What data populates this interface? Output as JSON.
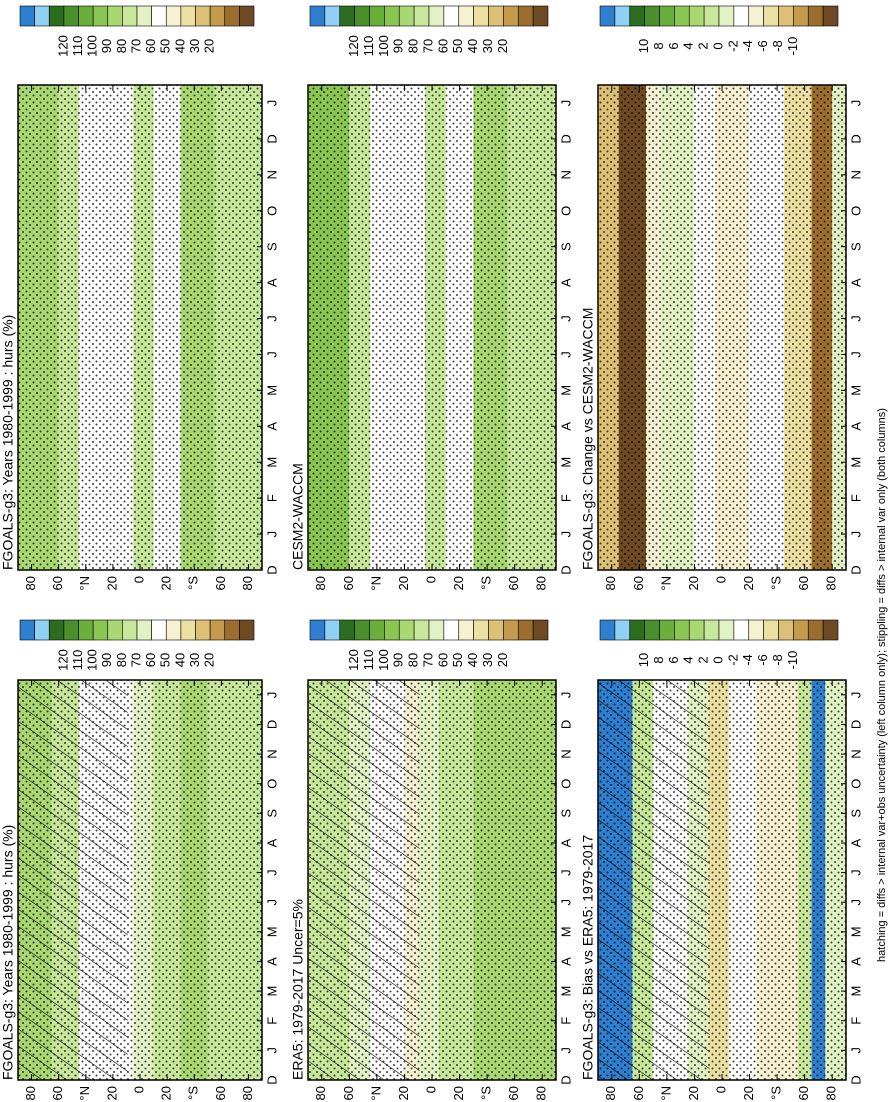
{
  "chart_data": [
    {
      "type": "contour",
      "title": "FGOALS-g3: Years 1980-1999 : hurs (%)",
      "categories": [
        "D",
        "J",
        "F",
        "M",
        "A",
        "M",
        "J",
        "J",
        "A",
        "S",
        "O",
        "N",
        "D",
        "J"
      ],
      "ylim": [
        90,
        -90
      ],
      "yticks": [
        80,
        60,
        {
          "value": 40,
          "label": "°N"
        },
        20,
        0,
        {
          "value": -20,
          "label": "20"
        },
        {
          "value": -40,
          "label": "°S"
        },
        {
          "value": -60,
          "label": "60"
        },
        {
          "value": -80,
          "label": "80"
        }
      ],
      "colorbar": {
        "ticks": [
          120,
          110,
          100,
          90,
          80,
          70,
          60,
          50,
          40,
          30,
          20
        ],
        "colors": [
          "#2f7fd0",
          "#8fd0f5",
          "#2c6e1f",
          "#4a8f2c",
          "#6aae3c",
          "#8bc653",
          "#a9d873",
          "#c7e89a",
          "#e2f2c4",
          "#ffffff",
          "#f6f1d0",
          "#ecdfa2",
          "#dcc076",
          "#c49a4c",
          "#9c6e2e",
          "#6e4a22"
        ]
      },
      "hatching": true
    },
    {
      "type": "contour",
      "title": "FGOALS-g3: Years 1980-1999 : hurs (%)",
      "categories": [
        "D",
        "J",
        "F",
        "M",
        "A",
        "M",
        "J",
        "J",
        "A",
        "S",
        "O",
        "N",
        "D",
        "J"
      ],
      "ylim": [
        90,
        -90
      ],
      "yticks": [
        80,
        60,
        {
          "value": 40,
          "label": "°N"
        },
        20,
        0,
        {
          "value": -20,
          "label": "20"
        },
        {
          "value": -40,
          "label": "°S"
        },
        {
          "value": -60,
          "label": "60"
        },
        {
          "value": -80,
          "label": "80"
        }
      ],
      "colorbar": {
        "ticks": [
          120,
          110,
          100,
          90,
          80,
          70,
          60,
          50,
          40,
          30,
          20
        ],
        "colors": [
          "#2f7fd0",
          "#8fd0f5",
          "#2c6e1f",
          "#4a8f2c",
          "#6aae3c",
          "#8bc653",
          "#a9d873",
          "#c7e89a",
          "#e2f2c4",
          "#ffffff",
          "#f6f1d0",
          "#ecdfa2",
          "#dcc076",
          "#c49a4c",
          "#9c6e2e",
          "#6e4a22"
        ]
      },
      "hatching": false
    },
    {
      "type": "contour",
      "title": "ERA5: 1979-2017 Uncer=5%",
      "categories": [
        "D",
        "J",
        "F",
        "M",
        "A",
        "M",
        "J",
        "J",
        "A",
        "S",
        "O",
        "N",
        "D",
        "J"
      ],
      "ylim": [
        90,
        -90
      ],
      "yticks": [
        80,
        60,
        {
          "value": 40,
          "label": "°N"
        },
        20,
        0,
        {
          "value": -20,
          "label": "20"
        },
        {
          "value": -40,
          "label": "°S"
        },
        {
          "value": -60,
          "label": "60"
        },
        {
          "value": -80,
          "label": "80"
        }
      ],
      "colorbar": {
        "ticks": [
          120,
          110,
          100,
          90,
          80,
          70,
          60,
          50,
          40,
          30,
          20
        ],
        "colors": [
          "#2f7fd0",
          "#8fd0f5",
          "#2c6e1f",
          "#4a8f2c",
          "#6aae3c",
          "#8bc653",
          "#a9d873",
          "#c7e89a",
          "#e2f2c4",
          "#ffffff",
          "#f6f1d0",
          "#ecdfa2",
          "#dcc076",
          "#c49a4c",
          "#9c6e2e",
          "#6e4a22"
        ]
      },
      "hatching": true
    },
    {
      "type": "contour",
      "title": "CESM2-WACCM",
      "categories": [
        "D",
        "J",
        "F",
        "M",
        "A",
        "M",
        "J",
        "J",
        "A",
        "S",
        "O",
        "N",
        "D",
        "J"
      ],
      "ylim": [
        90,
        -90
      ],
      "yticks": [
        80,
        60,
        {
          "value": 40,
          "label": "°N"
        },
        20,
        0,
        {
          "value": -20,
          "label": "20"
        },
        {
          "value": -40,
          "label": "°S"
        },
        {
          "value": -60,
          "label": "60"
        },
        {
          "value": -80,
          "label": "80"
        }
      ],
      "colorbar": {
        "ticks": [
          120,
          110,
          100,
          90,
          80,
          70,
          60,
          50,
          40,
          30,
          20
        ],
        "colors": [
          "#2f7fd0",
          "#8fd0f5",
          "#2c6e1f",
          "#4a8f2c",
          "#6aae3c",
          "#8bc653",
          "#a9d873",
          "#c7e89a",
          "#e2f2c4",
          "#ffffff",
          "#f6f1d0",
          "#ecdfa2",
          "#dcc076",
          "#c49a4c",
          "#9c6e2e",
          "#6e4a22"
        ]
      },
      "hatching": false
    },
    {
      "type": "contour",
      "title": "FGOALS-g3: Bias vs ERA5: 1979-2017",
      "categories": [
        "D",
        "J",
        "F",
        "M",
        "A",
        "M",
        "J",
        "J",
        "A",
        "S",
        "O",
        "N",
        "D",
        "J"
      ],
      "ylim": [
        90,
        -90
      ],
      "yticks": [
        80,
        60,
        {
          "value": 40,
          "label": "°N"
        },
        20,
        0,
        {
          "value": -20,
          "label": "20"
        },
        {
          "value": -40,
          "label": "°S"
        },
        {
          "value": -60,
          "label": "60"
        },
        {
          "value": -80,
          "label": "80"
        }
      ],
      "colorbar": {
        "ticks": [
          10,
          8,
          6,
          4,
          2,
          0,
          -2,
          -4,
          -6,
          -8,
          -10
        ],
        "colors": [
          "#2f7fd0",
          "#8fd0f5",
          "#2c6e1f",
          "#4a8f2c",
          "#6aae3c",
          "#8bc653",
          "#a9d873",
          "#c7e89a",
          "#e2f2c4",
          "#ffffff",
          "#f6f1d0",
          "#ecdfa2",
          "#dcc076",
          "#c49a4c",
          "#9c6e2e",
          "#6e4a22"
        ]
      },
      "hatching": true
    },
    {
      "type": "contour",
      "title": "FGOALS-g3: Change vs CESM2-WACCM",
      "categories": [
        "D",
        "J",
        "F",
        "M",
        "A",
        "M",
        "J",
        "J",
        "A",
        "S",
        "O",
        "N",
        "D",
        "J"
      ],
      "ylim": [
        90,
        -90
      ],
      "yticks": [
        80,
        60,
        {
          "value": 40,
          "label": "°N"
        },
        20,
        0,
        {
          "value": -20,
          "label": "20"
        },
        {
          "value": -40,
          "label": "°S"
        },
        {
          "value": -60,
          "label": "60"
        },
        {
          "value": -80,
          "label": "80"
        }
      ],
      "colorbar": {
        "ticks": [
          10,
          8,
          6,
          4,
          2,
          0,
          -2,
          -4,
          -6,
          -8,
          -10
        ],
        "colors": [
          "#2f7fd0",
          "#8fd0f5",
          "#2c6e1f",
          "#4a8f2c",
          "#6aae3c",
          "#8bc653",
          "#a9d873",
          "#c7e89a",
          "#e2f2c4",
          "#ffffff",
          "#f6f1d0",
          "#ecdfa2",
          "#dcc076",
          "#c49a4c",
          "#9c6e2e",
          "#6e4a22"
        ]
      },
      "hatching": false
    }
  ],
  "footnote": "hatching = diffs > internal var+obs uncertainty (left column only); stippling = diffs > internal var only (both columns)"
}
